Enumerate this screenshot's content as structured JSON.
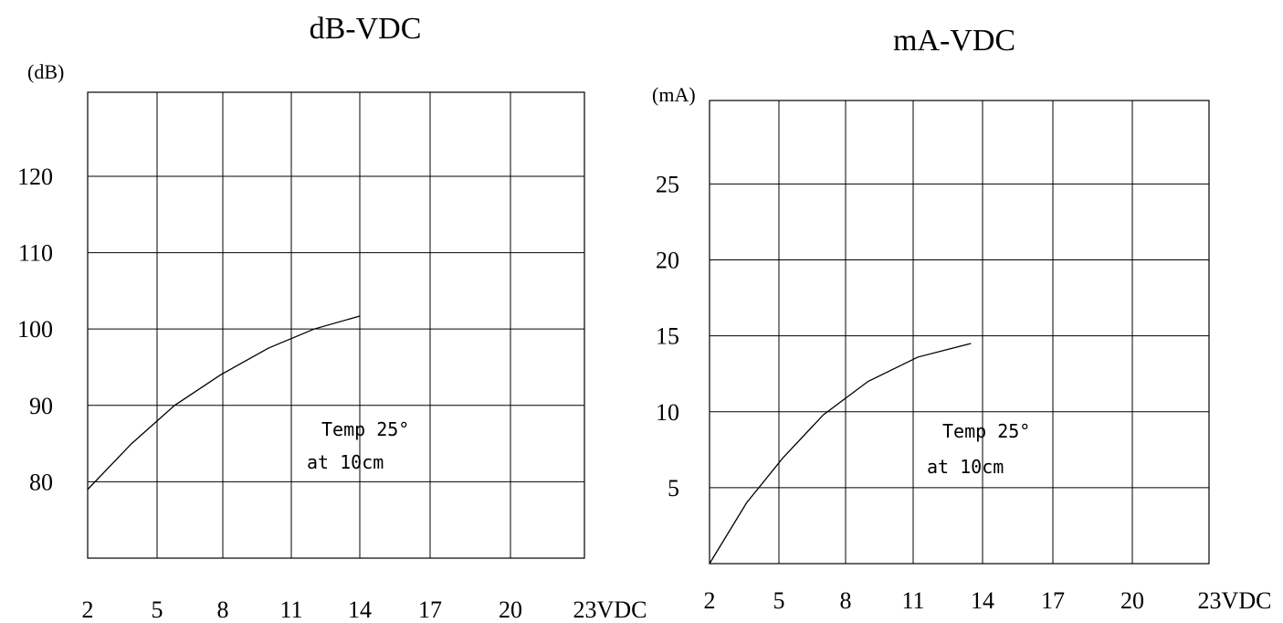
{
  "chart_data": [
    {
      "type": "line",
      "title": "dB-VDC",
      "ylabel": "(dB)",
      "xlabel": "",
      "x_tick_labels": [
        "2",
        "5",
        "8",
        "11",
        "14",
        "17",
        "20",
        "23VDC"
      ],
      "x_ticks": [
        2,
        5,
        8,
        11,
        14,
        17,
        20,
        23
      ],
      "y_tick_labels": [
        "80",
        "90",
        "100",
        "110",
        "120"
      ],
      "y_ticks": [
        80,
        90,
        100,
        110,
        120
      ],
      "xlim": [
        2,
        23
      ],
      "ylim": [
        70,
        131
      ],
      "grid": true,
      "series": [
        {
          "x": [
            2,
            3.9,
            5.8,
            7.9,
            10,
            12,
            14
          ],
          "y": [
            79,
            85,
            90,
            94,
            97.5,
            100,
            101.7
          ]
        }
      ],
      "annotations": [
        "Temp 25°",
        "at 10cm"
      ]
    },
    {
      "type": "line",
      "title": "mA-VDC",
      "ylabel": "(mA)",
      "xlabel": "",
      "x_tick_labels": [
        "2",
        "5",
        "8",
        "11",
        "14",
        "17",
        "20",
        "23VDC"
      ],
      "x_ticks": [
        2,
        5,
        8,
        11,
        14,
        17,
        20,
        23
      ],
      "y_tick_labels": [
        "5",
        "10",
        "15",
        "20",
        "25"
      ],
      "y_ticks": [
        5,
        10,
        15,
        20,
        25
      ],
      "xlim": [
        2,
        23
      ],
      "ylim": [
        0,
        30.5
      ],
      "grid": true,
      "series": [
        {
          "x": [
            2,
            3.6,
            5.2,
            7,
            9,
            11.2,
            13.5
          ],
          "y": [
            0,
            4,
            7,
            9.8,
            12,
            13.6,
            14.5
          ]
        }
      ],
      "annotations": [
        "Temp 25°",
        "at 10cm"
      ]
    }
  ]
}
